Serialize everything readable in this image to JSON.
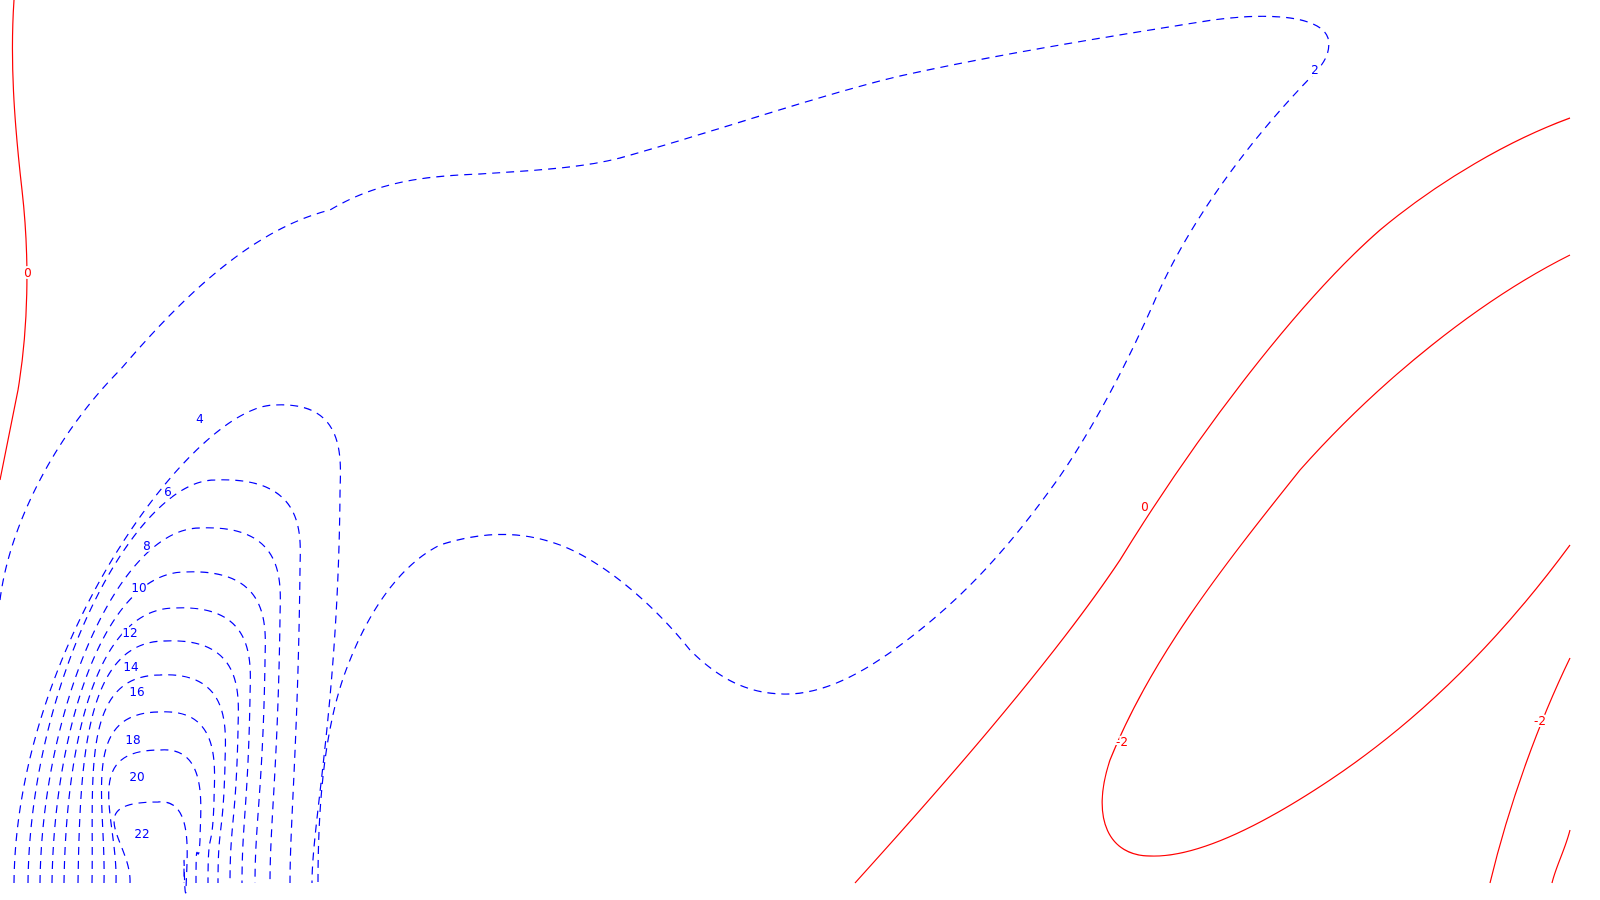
{
  "chart_data": {
    "type": "contour",
    "title": "",
    "xlabel": "",
    "ylabel": "",
    "legend": "none",
    "colors": {
      "negative_or_zero": "#ff0000",
      "positive": "#0000ff",
      "background": "#ffffff"
    },
    "contour_levels": [
      {
        "value": -2,
        "label": "-2",
        "style": "solid",
        "color": "#ff0000"
      },
      {
        "value": 0,
        "label": "0",
        "style": "solid",
        "color": "#ff0000"
      },
      {
        "value": 2,
        "label": "2",
        "style": "dashed",
        "color": "#0000ff"
      },
      {
        "value": 4,
        "label": "4",
        "style": "dashed",
        "color": "#0000ff"
      },
      {
        "value": 6,
        "label": "6",
        "style": "dashed",
        "color": "#0000ff"
      },
      {
        "value": 8,
        "label": "8",
        "style": "dashed",
        "color": "#0000ff"
      },
      {
        "value": 10,
        "label": "10",
        "style": "dashed",
        "color": "#0000ff"
      },
      {
        "value": 12,
        "label": "12",
        "style": "dashed",
        "color": "#0000ff"
      },
      {
        "value": 14,
        "label": "14",
        "style": "dashed",
        "color": "#0000ff"
      },
      {
        "value": 16,
        "label": "16",
        "style": "dashed",
        "color": "#0000ff"
      },
      {
        "value": 18,
        "label": "18",
        "style": "dashed",
        "color": "#0000ff"
      },
      {
        "value": 20,
        "label": "20",
        "style": "dashed",
        "color": "#0000ff"
      },
      {
        "value": 22,
        "label": "22",
        "style": "dashed",
        "color": "#0000ff"
      }
    ]
  }
}
